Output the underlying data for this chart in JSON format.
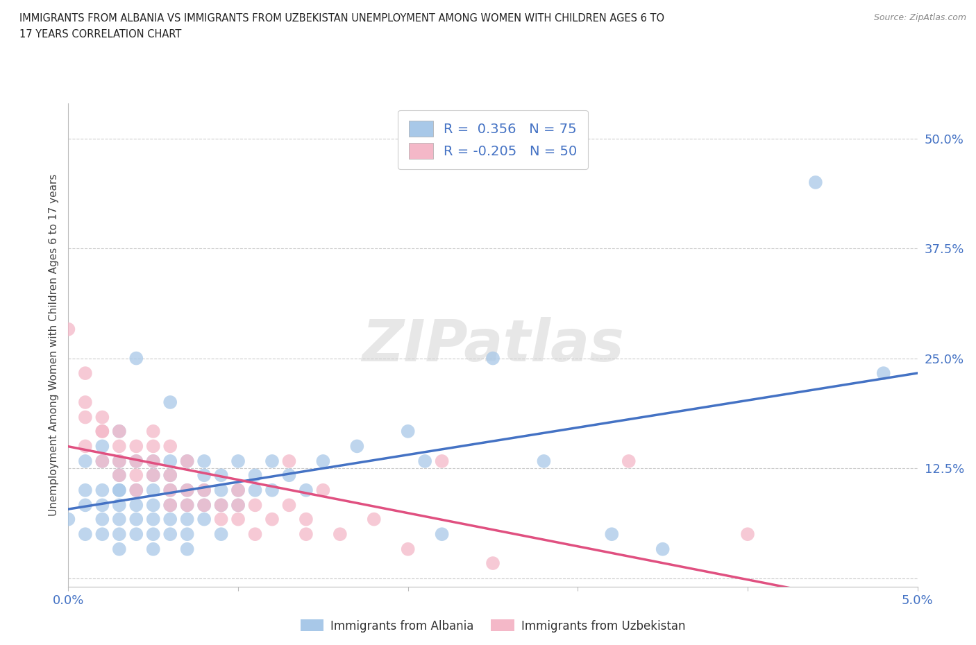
{
  "title_line1": "IMMIGRANTS FROM ALBANIA VS IMMIGRANTS FROM UZBEKISTAN UNEMPLOYMENT AMONG WOMEN WITH CHILDREN AGES 6 TO",
  "title_line2": "17 YEARS CORRELATION CHART",
  "source_text": "Source: ZipAtlas.com",
  "ylabel": "Unemployment Among Women with Children Ages 6 to 17 years",
  "xlim": [
    0.0,
    0.05
  ],
  "ylim": [
    -0.01,
    0.54
  ],
  "xticks": [
    0.0,
    0.01,
    0.02,
    0.03,
    0.04,
    0.05
  ],
  "xticklabels": [
    "0.0%",
    "",
    "",
    "",
    "",
    "5.0%"
  ],
  "yticks": [
    0.0,
    0.125,
    0.25,
    0.375,
    0.5
  ],
  "yticklabels": [
    "",
    "12.5%",
    "25.0%",
    "37.5%",
    "50.0%"
  ],
  "albania_color": "#a8c8e8",
  "uzbekistan_color": "#f4b8c8",
  "albania_line_color": "#4472c4",
  "uzbekistan_line_color": "#e05080",
  "R_albania": 0.356,
  "N_albania": 75,
  "R_uzbekistan": -0.205,
  "N_uzbekistan": 50,
  "watermark": "ZIPatlas",
  "legend_label_albania": "Immigrants from Albania",
  "legend_label_uzbekistan": "Immigrants from Uzbekistan",
  "background_color": "#ffffff",
  "grid_color": "#cccccc",
  "albania_scatter": [
    [
      0.0,
      0.067
    ],
    [
      0.001,
      0.1
    ],
    [
      0.001,
      0.083
    ],
    [
      0.001,
      0.133
    ],
    [
      0.001,
      0.05
    ],
    [
      0.002,
      0.15
    ],
    [
      0.002,
      0.1
    ],
    [
      0.002,
      0.083
    ],
    [
      0.002,
      0.067
    ],
    [
      0.002,
      0.133
    ],
    [
      0.002,
      0.05
    ],
    [
      0.003,
      0.167
    ],
    [
      0.003,
      0.1
    ],
    [
      0.003,
      0.133
    ],
    [
      0.003,
      0.083
    ],
    [
      0.003,
      0.067
    ],
    [
      0.003,
      0.05
    ],
    [
      0.003,
      0.033
    ],
    [
      0.003,
      0.117
    ],
    [
      0.003,
      0.1
    ],
    [
      0.004,
      0.25
    ],
    [
      0.004,
      0.133
    ],
    [
      0.004,
      0.1
    ],
    [
      0.004,
      0.083
    ],
    [
      0.004,
      0.067
    ],
    [
      0.004,
      0.05
    ],
    [
      0.005,
      0.133
    ],
    [
      0.005,
      0.117
    ],
    [
      0.005,
      0.1
    ],
    [
      0.005,
      0.083
    ],
    [
      0.005,
      0.067
    ],
    [
      0.005,
      0.05
    ],
    [
      0.005,
      0.033
    ],
    [
      0.006,
      0.133
    ],
    [
      0.006,
      0.117
    ],
    [
      0.006,
      0.1
    ],
    [
      0.006,
      0.083
    ],
    [
      0.006,
      0.067
    ],
    [
      0.006,
      0.05
    ],
    [
      0.006,
      0.2
    ],
    [
      0.007,
      0.133
    ],
    [
      0.007,
      0.1
    ],
    [
      0.007,
      0.083
    ],
    [
      0.007,
      0.067
    ],
    [
      0.007,
      0.05
    ],
    [
      0.007,
      0.033
    ],
    [
      0.008,
      0.133
    ],
    [
      0.008,
      0.117
    ],
    [
      0.008,
      0.1
    ],
    [
      0.008,
      0.083
    ],
    [
      0.008,
      0.067
    ],
    [
      0.009,
      0.117
    ],
    [
      0.009,
      0.1
    ],
    [
      0.009,
      0.083
    ],
    [
      0.009,
      0.05
    ],
    [
      0.01,
      0.133
    ],
    [
      0.01,
      0.1
    ],
    [
      0.01,
      0.083
    ],
    [
      0.011,
      0.117
    ],
    [
      0.011,
      0.1
    ],
    [
      0.012,
      0.133
    ],
    [
      0.012,
      0.1
    ],
    [
      0.013,
      0.117
    ],
    [
      0.014,
      0.1
    ],
    [
      0.015,
      0.133
    ],
    [
      0.017,
      0.15
    ],
    [
      0.02,
      0.167
    ],
    [
      0.021,
      0.133
    ],
    [
      0.022,
      0.05
    ],
    [
      0.025,
      0.25
    ],
    [
      0.028,
      0.133
    ],
    [
      0.032,
      0.05
    ],
    [
      0.035,
      0.033
    ],
    [
      0.044,
      0.45
    ],
    [
      0.048,
      0.233
    ]
  ],
  "uzbekistan_scatter": [
    [
      0.0,
      0.283
    ],
    [
      0.001,
      0.233
    ],
    [
      0.001,
      0.183
    ],
    [
      0.001,
      0.15
    ],
    [
      0.001,
      0.2
    ],
    [
      0.002,
      0.167
    ],
    [
      0.002,
      0.133
    ],
    [
      0.002,
      0.167
    ],
    [
      0.002,
      0.183
    ],
    [
      0.003,
      0.15
    ],
    [
      0.003,
      0.133
    ],
    [
      0.003,
      0.117
    ],
    [
      0.003,
      0.167
    ],
    [
      0.004,
      0.133
    ],
    [
      0.004,
      0.15
    ],
    [
      0.004,
      0.117
    ],
    [
      0.004,
      0.1
    ],
    [
      0.005,
      0.15
    ],
    [
      0.005,
      0.133
    ],
    [
      0.005,
      0.117
    ],
    [
      0.005,
      0.167
    ],
    [
      0.006,
      0.117
    ],
    [
      0.006,
      0.1
    ],
    [
      0.006,
      0.083
    ],
    [
      0.006,
      0.15
    ],
    [
      0.007,
      0.133
    ],
    [
      0.007,
      0.1
    ],
    [
      0.007,
      0.083
    ],
    [
      0.008,
      0.083
    ],
    [
      0.008,
      0.1
    ],
    [
      0.009,
      0.083
    ],
    [
      0.009,
      0.067
    ],
    [
      0.01,
      0.1
    ],
    [
      0.01,
      0.083
    ],
    [
      0.01,
      0.067
    ],
    [
      0.011,
      0.083
    ],
    [
      0.011,
      0.05
    ],
    [
      0.012,
      0.067
    ],
    [
      0.013,
      0.133
    ],
    [
      0.013,
      0.083
    ],
    [
      0.014,
      0.067
    ],
    [
      0.014,
      0.05
    ],
    [
      0.015,
      0.1
    ],
    [
      0.016,
      0.05
    ],
    [
      0.018,
      0.067
    ],
    [
      0.02,
      0.033
    ],
    [
      0.022,
      0.133
    ],
    [
      0.025,
      0.017
    ],
    [
      0.033,
      0.133
    ],
    [
      0.04,
      0.05
    ]
  ]
}
